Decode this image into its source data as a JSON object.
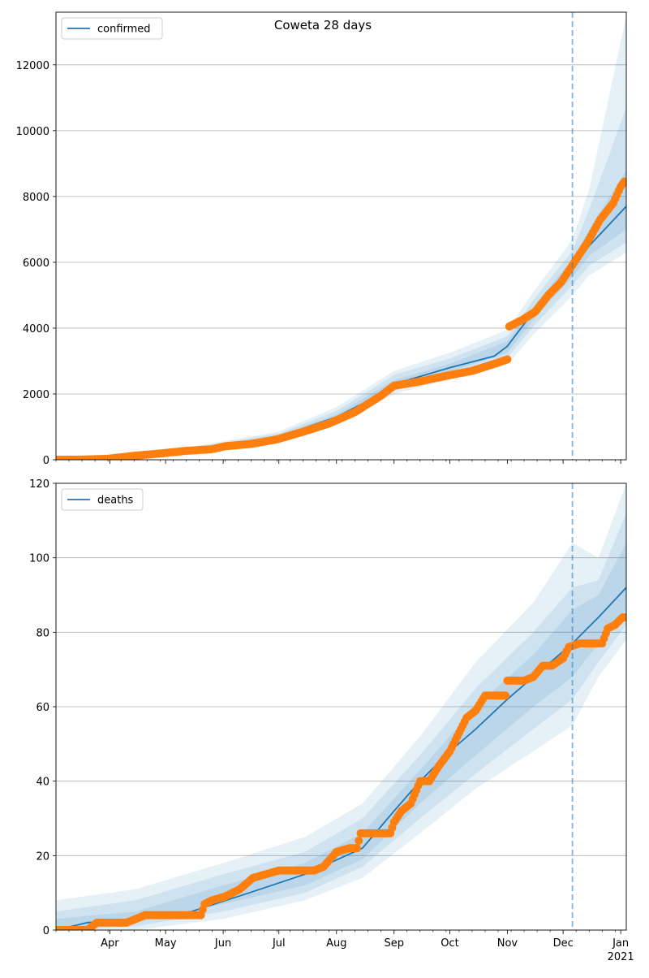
{
  "title": "Coweta 28 days",
  "colors": {
    "model": "#1f77b4",
    "observed": "#ff7f0e",
    "band": "#1f77b4",
    "grid": "#b0b0b0",
    "forecast_line": "#1f77b4"
  },
  "chart_data": [
    {
      "type": "line",
      "name": "confirmed-panel",
      "legend": "confirmed",
      "legend_position": "upper-left",
      "grid": "y",
      "x_range": [
        "2020-03-03",
        "2021-01-04"
      ],
      "ylim": [
        0,
        13600
      ],
      "y_ticks": [
        0,
        2000,
        4000,
        6000,
        8000,
        10000,
        12000
      ],
      "forecast_start": "2020-12-06",
      "model_median": [
        [
          "2020-03-03",
          0
        ],
        [
          "2020-04-01",
          40
        ],
        [
          "2020-05-01",
          200
        ],
        [
          "2020-06-01",
          400
        ],
        [
          "2020-07-01",
          700
        ],
        [
          "2020-08-01",
          1300
        ],
        [
          "2020-08-20",
          1850
        ],
        [
          "2020-09-01",
          2300
        ],
        [
          "2020-10-01",
          2800
        ],
        [
          "2020-10-25",
          3150
        ],
        [
          "2020-11-01",
          3450
        ],
        [
          "2020-11-15",
          4500
        ],
        [
          "2020-12-01",
          5500
        ],
        [
          "2020-12-06",
          5800
        ],
        [
          "2020-12-15",
          6500
        ],
        [
          "2021-01-04",
          7700
        ]
      ],
      "bands": [
        {
          "lower": [
            [
              "2020-03-03",
              0
            ],
            [
              "2020-05-01",
              150
            ],
            [
              "2020-07-01",
              560
            ],
            [
              "2020-08-01",
              1050
            ],
            [
              "2020-09-01",
              2000
            ],
            [
              "2020-10-01",
              2450
            ],
            [
              "2020-11-01",
              2900
            ],
            [
              "2020-11-15",
              3800
            ],
            [
              "2020-12-01",
              4700
            ],
            [
              "2020-12-06",
              5000
            ],
            [
              "2020-12-15",
              5600
            ],
            [
              "2021-01-04",
              6300
            ]
          ],
          "upper": [
            [
              "2020-03-03",
              50
            ],
            [
              "2020-05-01",
              260
            ],
            [
              "2020-07-01",
              860
            ],
            [
              "2020-08-01",
              1600
            ],
            [
              "2020-09-01",
              2700
            ],
            [
              "2020-10-01",
              3250
            ],
            [
              "2020-11-01",
              3950
            ],
            [
              "2020-11-15",
              5100
            ],
            [
              "2020-12-01",
              6300
            ],
            [
              "2020-12-06",
              6700
            ],
            [
              "2020-12-15",
              8200
            ],
            [
              "2021-01-04",
              13500
            ]
          ]
        },
        {
          "lower": [
            [
              "2020-03-03",
              0
            ],
            [
              "2020-05-01",
              165
            ],
            [
              "2020-07-01",
              610
            ],
            [
              "2020-08-01",
              1150
            ],
            [
              "2020-09-01",
              2100
            ],
            [
              "2020-10-01",
              2580
            ],
            [
              "2020-11-01",
              3100
            ],
            [
              "2020-11-15",
              4050
            ],
            [
              "2020-12-01",
              5000
            ],
            [
              "2020-12-06",
              5300
            ],
            [
              "2020-12-15",
              5900
            ],
            [
              "2021-01-04",
              6600
            ]
          ],
          "upper": [
            [
              "2020-03-03",
              40
            ],
            [
              "2020-05-01",
              240
            ],
            [
              "2020-07-01",
              800
            ],
            [
              "2020-08-01",
              1480
            ],
            [
              "2020-09-01",
              2580
            ],
            [
              "2020-10-01",
              3080
            ],
            [
              "2020-11-01",
              3750
            ],
            [
              "2020-11-15",
              4850
            ],
            [
              "2020-12-01",
              6000
            ],
            [
              "2020-12-06",
              6350
            ],
            [
              "2020-12-15",
              7600
            ],
            [
              "2021-01-04",
              10700
            ]
          ]
        },
        {
          "lower": [
            [
              "2020-03-03",
              0
            ],
            [
              "2020-05-01",
              180
            ],
            [
              "2020-07-01",
              650
            ],
            [
              "2020-08-01",
              1220
            ],
            [
              "2020-09-01",
              2200
            ],
            [
              "2020-10-01",
              2680
            ],
            [
              "2020-11-01",
              3250
            ],
            [
              "2020-11-15",
              4250
            ],
            [
              "2020-12-01",
              5250
            ],
            [
              "2020-12-06",
              5550
            ],
            [
              "2020-12-15",
              6200
            ],
            [
              "2021-01-04",
              7000
            ]
          ],
          "upper": [
            [
              "2020-03-03",
              25
            ],
            [
              "2020-05-01",
              220
            ],
            [
              "2020-07-01",
              750
            ],
            [
              "2020-08-01",
              1380
            ],
            [
              "2020-09-01",
              2420
            ],
            [
              "2020-10-01",
              2920
            ],
            [
              "2020-11-01",
              3600
            ],
            [
              "2020-11-15",
              4650
            ],
            [
              "2020-12-01",
              5750
            ],
            [
              "2020-12-06",
              6050
            ],
            [
              "2020-12-15",
              7000
            ],
            [
              "2021-01-04",
              8800
            ]
          ]
        }
      ],
      "observed": [
        [
          "2020-03-03",
          0
        ],
        [
          "2020-03-17",
          5
        ],
        [
          "2020-03-31",
          30
        ],
        [
          "2020-04-14",
          120
        ],
        [
          "2020-04-28",
          190
        ],
        [
          "2020-05-12",
          270
        ],
        [
          "2020-05-26",
          320
        ],
        [
          "2020-06-02",
          410
        ],
        [
          "2020-06-16",
          480
        ],
        [
          "2020-06-30",
          620
        ],
        [
          "2020-07-14",
          850
        ],
        [
          "2020-07-28",
          1100
        ],
        [
          "2020-08-11",
          1450
        ],
        [
          "2020-08-25",
          1950
        ],
        [
          "2020-09-01",
          2250
        ],
        [
          "2020-09-15",
          2380
        ],
        [
          "2020-09-29",
          2550
        ],
        [
          "2020-10-13",
          2700
        ],
        [
          "2020-10-27",
          2950
        ],
        [
          "2020-11-01",
          3050
        ],
        [
          "2020-11-02",
          4050
        ],
        [
          "2020-11-09",
          4250
        ],
        [
          "2020-11-16",
          4500
        ],
        [
          "2020-11-23",
          5000
        ],
        [
          "2020-11-30",
          5400
        ],
        [
          "2020-12-07",
          6000
        ],
        [
          "2020-12-14",
          6600
        ],
        [
          "2020-12-21",
          7300
        ],
        [
          "2020-12-28",
          7800
        ],
        [
          "2021-01-01",
          8300
        ],
        [
          "2021-01-03",
          8450
        ]
      ]
    },
    {
      "type": "line",
      "name": "deaths-panel",
      "legend": "deaths",
      "legend_position": "upper-left",
      "grid": "y",
      "x_range": [
        "2020-03-03",
        "2021-01-04"
      ],
      "ylim": [
        0,
        120
      ],
      "y_ticks": [
        0,
        20,
        40,
        60,
        80,
        100,
        120
      ],
      "x_tick_labels": [
        "Apr",
        "May",
        "Jun",
        "Jul",
        "Aug",
        "Sep",
        "Oct",
        "Nov",
        "Dec",
        "Jan"
      ],
      "x_tick_dates": [
        "2020-04-01",
        "2020-05-01",
        "2020-06-01",
        "2020-07-01",
        "2020-08-01",
        "2020-09-01",
        "2020-10-01",
        "2020-11-01",
        "2020-12-01",
        "2021-01-01"
      ],
      "x_year_label": "2021",
      "forecast_start": "2020-12-06",
      "model_median": [
        [
          "2020-03-03",
          0
        ],
        [
          "2020-03-20",
          2
        ],
        [
          "2020-04-15",
          3
        ],
        [
          "2020-05-15",
          5
        ],
        [
          "2020-06-15",
          10
        ],
        [
          "2020-07-15",
          15
        ],
        [
          "2020-08-15",
          22
        ],
        [
          "2020-09-01",
          32
        ],
        [
          "2020-09-15",
          40
        ],
        [
          "2020-10-01",
          48
        ],
        [
          "2020-10-15",
          54
        ],
        [
          "2020-11-01",
          62
        ],
        [
          "2020-11-15",
          68
        ],
        [
          "2020-12-06",
          77
        ],
        [
          "2020-12-20",
          84
        ],
        [
          "2021-01-04",
          92
        ]
      ],
      "bands": [
        {
          "lower": [
            [
              "2020-03-03",
              0
            ],
            [
              "2020-04-15",
              0
            ],
            [
              "2020-06-01",
              3
            ],
            [
              "2020-07-15",
              8
            ],
            [
              "2020-08-15",
              14
            ],
            [
              "2020-09-15",
              26
            ],
            [
              "2020-10-15",
              38
            ],
            [
              "2020-11-15",
              48
            ],
            [
              "2020-12-06",
              55
            ],
            [
              "2020-12-20",
              68
            ],
            [
              "2021-01-04",
              78
            ]
          ],
          "upper": [
            [
              "2020-03-03",
              8
            ],
            [
              "2020-04-15",
              11
            ],
            [
              "2020-06-01",
              18
            ],
            [
              "2020-07-15",
              25
            ],
            [
              "2020-08-15",
              34
            ],
            [
              "2020-09-15",
              52
            ],
            [
              "2020-10-15",
              72
            ],
            [
              "2020-11-15",
              88
            ],
            [
              "2020-12-06",
              104
            ],
            [
              "2020-12-20",
              100
            ],
            [
              "2021-01-04",
              120
            ]
          ]
        },
        {
          "lower": [
            [
              "2020-03-03",
              0
            ],
            [
              "2020-04-15",
              1
            ],
            [
              "2020-06-01",
              5
            ],
            [
              "2020-07-15",
              10
            ],
            [
              "2020-08-15",
              17
            ],
            [
              "2020-09-15",
              30
            ],
            [
              "2020-10-15",
              42
            ],
            [
              "2020-11-15",
              54
            ],
            [
              "2020-12-06",
              62
            ],
            [
              "2020-12-20",
              72
            ],
            [
              "2021-01-04",
              82
            ]
          ],
          "upper": [
            [
              "2020-03-03",
              5
            ],
            [
              "2020-04-15",
              8
            ],
            [
              "2020-06-01",
              15
            ],
            [
              "2020-07-15",
              21
            ],
            [
              "2020-08-15",
              30
            ],
            [
              "2020-09-15",
              47
            ],
            [
              "2020-10-15",
              65
            ],
            [
              "2020-11-15",
              80
            ],
            [
              "2020-12-06",
              92
            ],
            [
              "2020-12-20",
              94
            ],
            [
              "2021-01-04",
              112
            ]
          ]
        },
        {
          "lower": [
            [
              "2020-03-03",
              0
            ],
            [
              "2020-04-15",
              2
            ],
            [
              "2020-06-01",
              7
            ],
            [
              "2020-07-15",
              12
            ],
            [
              "2020-08-15",
              19
            ],
            [
              "2020-09-15",
              34
            ],
            [
              "2020-10-15",
              47
            ],
            [
              "2020-11-15",
              60
            ],
            [
              "2020-12-06",
              68
            ],
            [
              "2020-12-20",
              77
            ],
            [
              "2021-01-04",
              86
            ]
          ],
          "upper": [
            [
              "2020-03-03",
              3
            ],
            [
              "2020-04-15",
              5
            ],
            [
              "2020-06-01",
              12
            ],
            [
              "2020-07-15",
              18
            ],
            [
              "2020-08-15",
              26
            ],
            [
              "2020-09-15",
              43
            ],
            [
              "2020-10-15",
              60
            ],
            [
              "2020-11-15",
              74
            ],
            [
              "2020-12-06",
              86
            ],
            [
              "2020-12-20",
              90
            ],
            [
              "2021-01-04",
              104
            ]
          ]
        }
      ],
      "observed": [
        [
          "2020-03-03",
          0
        ],
        [
          "2020-03-20",
          0
        ],
        [
          "2020-03-25",
          2
        ],
        [
          "2020-04-10",
          2
        ],
        [
          "2020-04-15",
          3
        ],
        [
          "2020-04-20",
          4
        ],
        [
          "2020-05-20",
          4
        ],
        [
          "2020-05-22",
          7
        ],
        [
          "2020-05-26",
          8
        ],
        [
          "2020-06-02",
          9
        ],
        [
          "2020-06-10",
          11
        ],
        [
          "2020-06-17",
          14
        ],
        [
          "2020-06-24",
          15
        ],
        [
          "2020-07-01",
          16
        ],
        [
          "2020-07-20",
          16
        ],
        [
          "2020-07-25",
          17
        ],
        [
          "2020-08-01",
          21
        ],
        [
          "2020-08-08",
          22
        ],
        [
          "2020-08-12",
          22
        ],
        [
          "2020-08-14",
          26
        ],
        [
          "2020-08-30",
          26
        ],
        [
          "2020-09-01",
          29
        ],
        [
          "2020-09-05",
          32
        ],
        [
          "2020-09-10",
          34
        ],
        [
          "2020-09-15",
          40
        ],
        [
          "2020-09-20",
          40
        ],
        [
          "2020-09-25",
          44
        ],
        [
          "2020-10-01",
          48
        ],
        [
          "2020-10-05",
          52
        ],
        [
          "2020-10-10",
          57
        ],
        [
          "2020-10-15",
          59
        ],
        [
          "2020-10-20",
          63
        ],
        [
          "2020-10-31",
          63
        ],
        [
          "2020-11-01",
          67
        ],
        [
          "2020-11-10",
          67
        ],
        [
          "2020-11-15",
          68
        ],
        [
          "2020-11-20",
          71
        ],
        [
          "2020-11-25",
          71
        ],
        [
          "2020-12-01",
          73
        ],
        [
          "2020-12-04",
          76
        ],
        [
          "2020-12-10",
          77
        ],
        [
          "2020-12-15",
          77
        ],
        [
          "2020-12-22",
          77
        ],
        [
          "2020-12-25",
          81
        ],
        [
          "2020-12-29",
          82
        ],
        [
          "2021-01-02",
          84
        ],
        [
          "2021-01-04",
          84
        ]
      ]
    }
  ]
}
